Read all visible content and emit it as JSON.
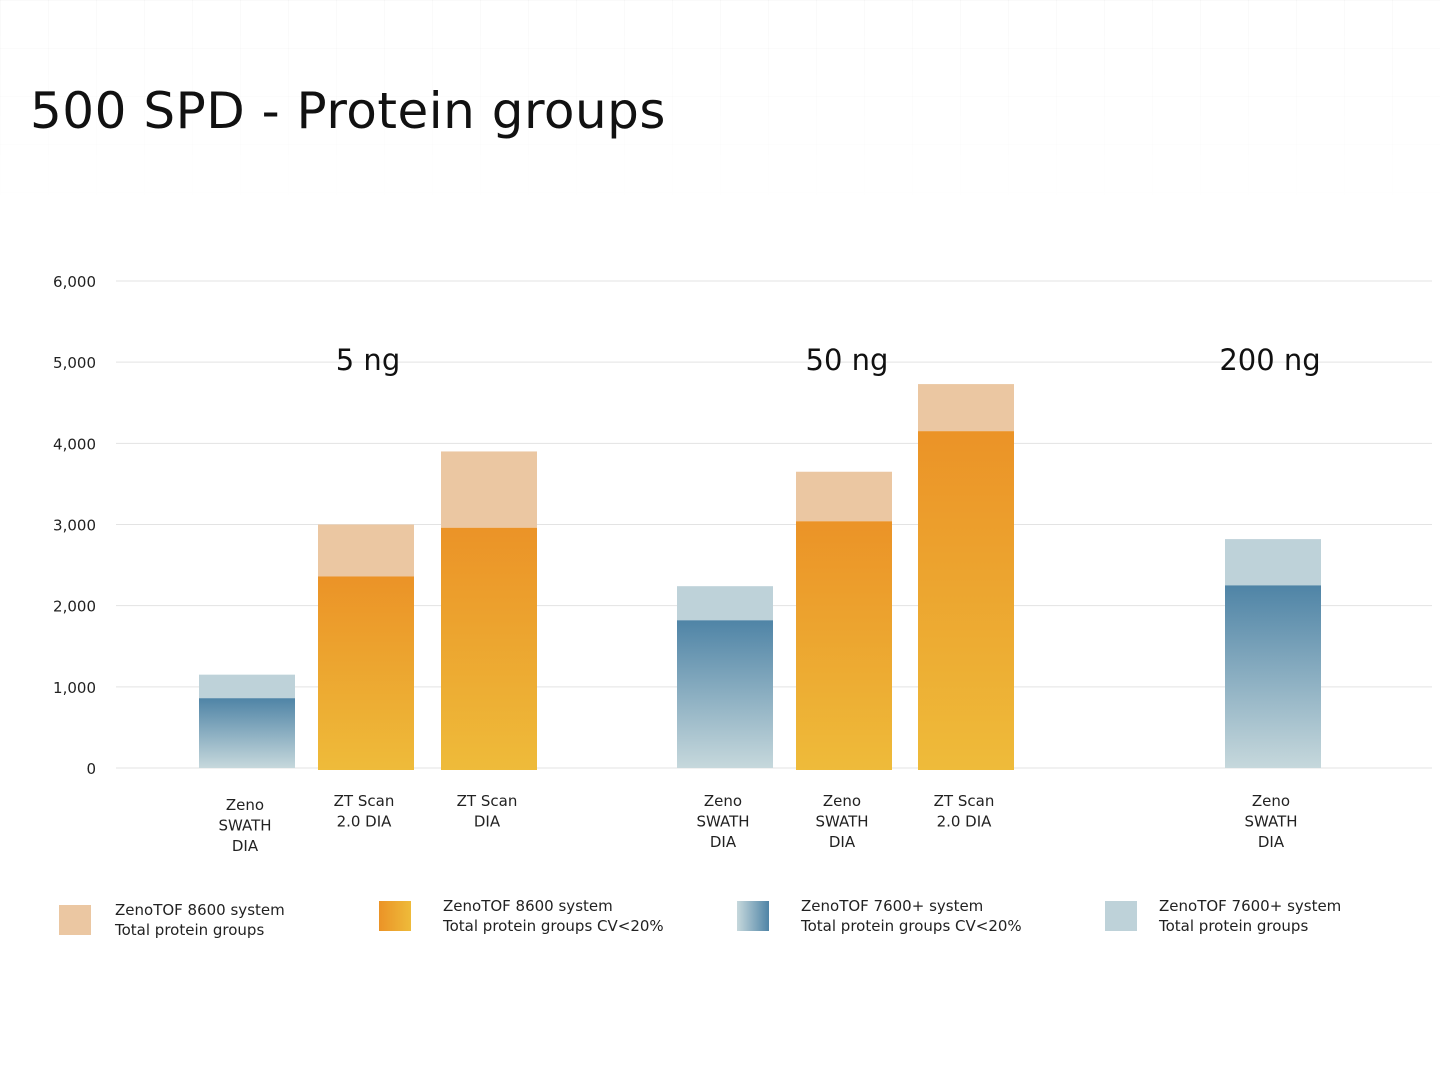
{
  "title": "500 SPD - Protein groups",
  "colors": {
    "zt8600_total": "#ebc7a2",
    "zt8600_cv_top": "#eb9327",
    "zt8600_cv_bottom": "#eebb3a",
    "zt7600_cv_top": "#4f84a6",
    "zt7600_cv_bottom": "#c6d8dc",
    "zt7600_total": "#bed2d9",
    "grid": "#e3e3e3"
  },
  "chart_data": {
    "type": "bar",
    "ylim": [
      0,
      6000
    ],
    "yticks": [
      "0",
      "1,000",
      "2,000",
      "3,000",
      "4,000",
      "5,000",
      "6,000"
    ],
    "grid": true,
    "legend_position": "bottom",
    "groups": [
      {
        "label": "5 ng",
        "bars": [
          {
            "category": [
              "Zeno",
              "SWATH",
              "DIA"
            ],
            "system": "ZenoTOF 7600+",
            "total": 1150,
            "cv20": 860
          },
          {
            "category": [
              "ZT Scan",
              "2.0 DIA"
            ],
            "system": "ZenoTOF 8600",
            "total": 3000,
            "cv20": 2360
          },
          {
            "category": [
              "ZT Scan",
              "DIA"
            ],
            "system": "ZenoTOF 8600",
            "total": 3900,
            "cv20": 2960
          }
        ]
      },
      {
        "label": "50 ng",
        "bars": [
          {
            "category": [
              "Zeno",
              "SWATH",
              "DIA"
            ],
            "system": "ZenoTOF 7600+",
            "total": 2240,
            "cv20": 1820
          },
          {
            "category": [
              "Zeno",
              "SWATH",
              "DIA"
            ],
            "system": "ZenoTOF 8600",
            "total": 3650,
            "cv20": 3040
          },
          {
            "category": [
              "ZT Scan",
              "2.0 DIA"
            ],
            "system": "ZenoTOF 8600",
            "total": 4730,
            "cv20": 4150
          }
        ]
      },
      {
        "label": "200 ng",
        "bars": [
          {
            "category": [
              "Zeno",
              "SWATH",
              "DIA"
            ],
            "system": "ZenoTOF 7600+",
            "total": 2820,
            "cv20": 2250
          }
        ]
      }
    ],
    "legend": [
      {
        "key": "zt8600_total",
        "line1": "ZenoTOF 8600 system",
        "line2": "Total protein groups"
      },
      {
        "key": "zt8600_cv",
        "line1": "ZenoTOF 8600 system",
        "line2": "Total protein groups CV<20%"
      },
      {
        "key": "zt7600_cv",
        "line1": "ZenoTOF 7600+ system",
        "line2": "Total protein groups CV<20%"
      },
      {
        "key": "zt7600_total",
        "line1": "ZenoTOF 7600+ system",
        "line2": "Total protein groups"
      }
    ]
  }
}
